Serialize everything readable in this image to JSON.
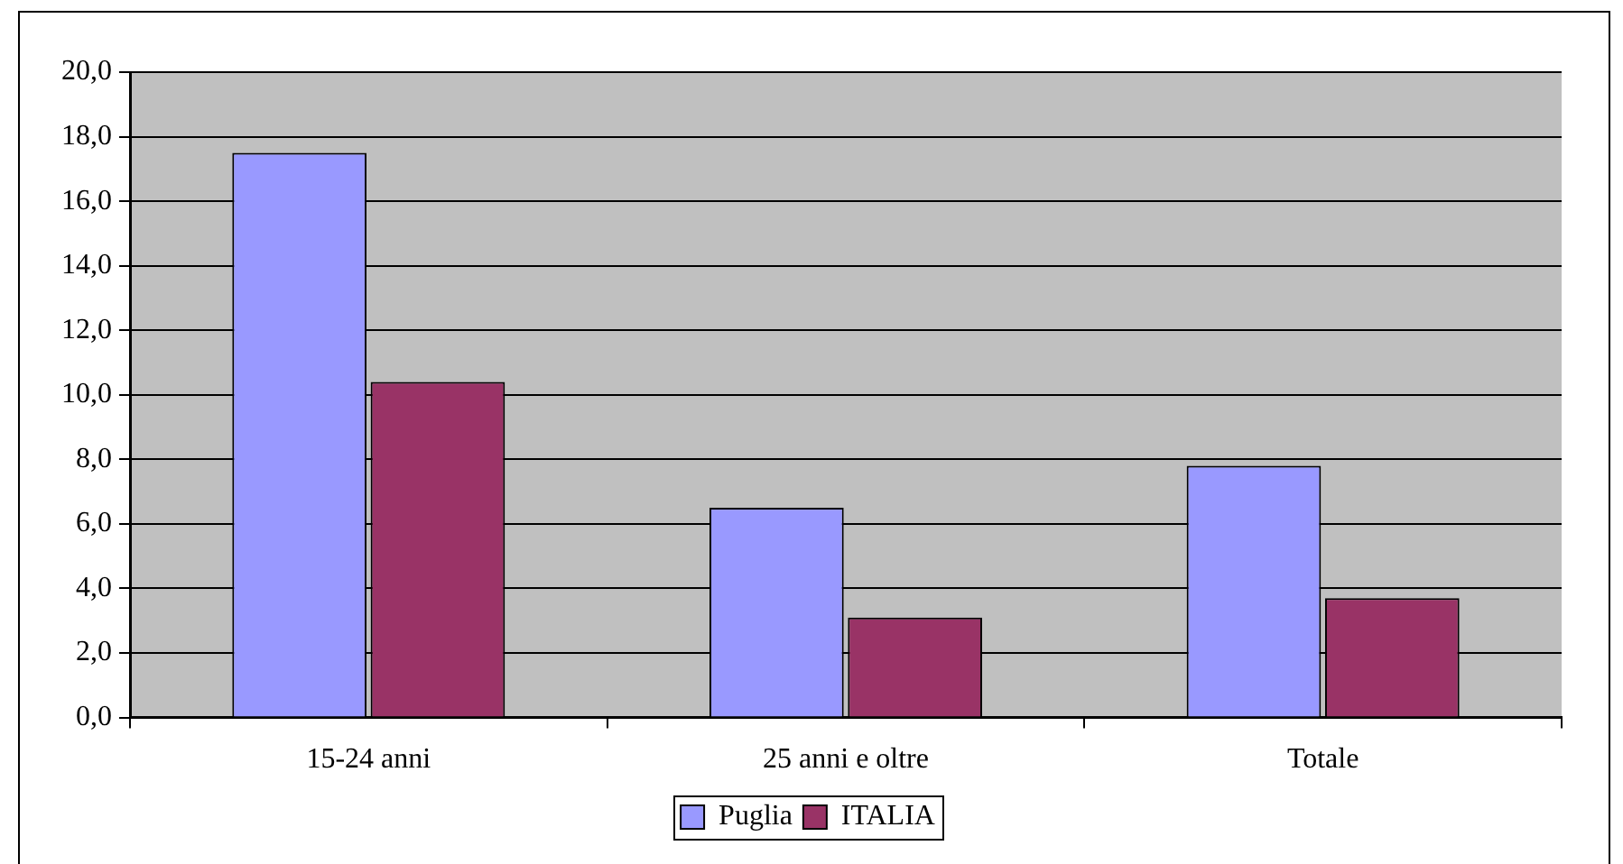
{
  "chart_data": {
    "type": "bar",
    "categories": [
      "15-24 anni",
      "25 anni e oltre",
      "Totale"
    ],
    "series": [
      {
        "name": "Puglia",
        "color": "#9999ff",
        "values": [
          17.5,
          6.5,
          7.8
        ]
      },
      {
        "name": "ITALIA",
        "color": "#993366",
        "values": [
          10.4,
          3.1,
          3.7
        ]
      }
    ],
    "ylim": [
      0,
      20
    ],
    "yticks": [
      {
        "value": 0,
        "label": "0,0"
      },
      {
        "value": 2,
        "label": "2,0"
      },
      {
        "value": 4,
        "label": "4,0"
      },
      {
        "value": 6,
        "label": "6,0"
      },
      {
        "value": 8,
        "label": "8,0"
      },
      {
        "value": 10,
        "label": "10,0"
      },
      {
        "value": 12,
        "label": "12,0"
      },
      {
        "value": 14,
        "label": "14,0"
      },
      {
        "value": 16,
        "label": "16,0"
      },
      {
        "value": 18,
        "label": "18,0"
      },
      {
        "value": 20,
        "label": "20,0"
      }
    ],
    "grid": "y",
    "legend": "bottom"
  }
}
